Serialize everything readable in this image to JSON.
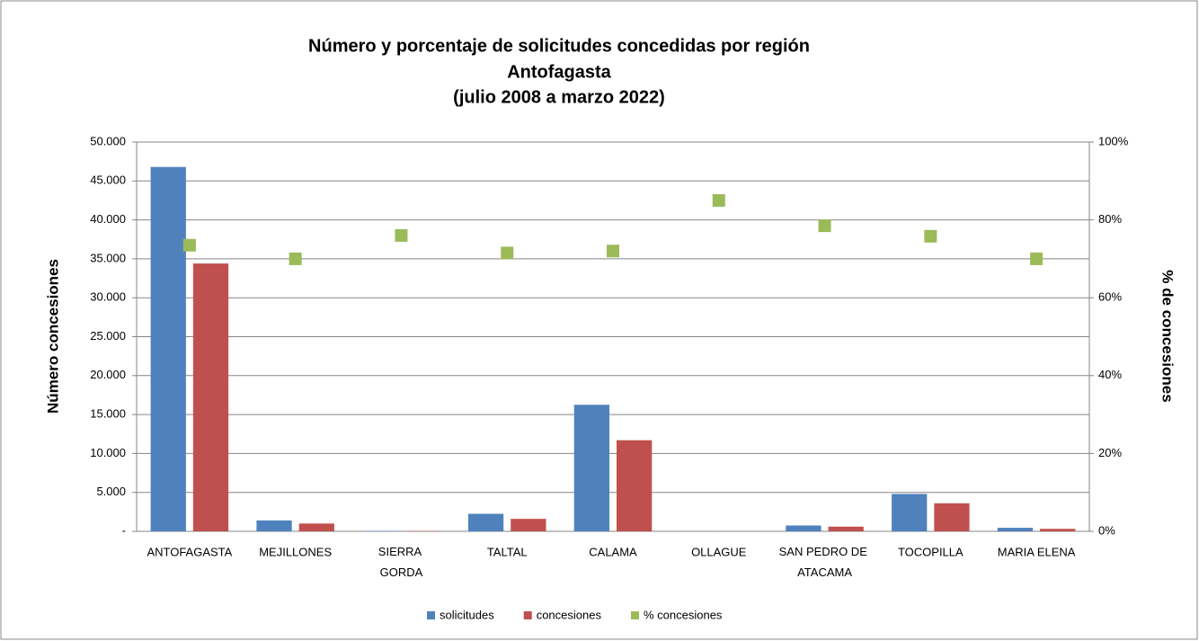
{
  "chart_data": {
    "type": "bar",
    "title": [
      "Número y porcentaje de solicitudes concedidas por región",
      "Antofagasta",
      "(julio 2008 a marzo 2022)"
    ],
    "ylabel": "Número concesiones",
    "y2label": "% de concesiones",
    "categories": [
      "ANTOFAGASTA",
      "MEJILLONES",
      "SIERRA\nGORDA",
      "TALTAL",
      "CALAMA",
      "OLLAGUE",
      "SAN PEDRO DE\nATACAMA",
      "TOCOPILLA",
      "MARIA ELENA"
    ],
    "series": [
      {
        "name": "solicitudes",
        "color": "#4f81bd",
        "type": "bar",
        "values": [
          46800,
          1400,
          50,
          2250,
          16250,
          10,
          750,
          4800,
          450
        ]
      },
      {
        "name": "concesiones",
        "color": "#c0504d",
        "type": "bar",
        "values": [
          34400,
          1000,
          40,
          1600,
          11700,
          8,
          600,
          3600,
          320
        ]
      },
      {
        "name": "% concesiones",
        "color": "#9bbb59",
        "type": "scatter",
        "axis": "y2",
        "values": [
          73.5,
          70,
          76,
          71.5,
          72,
          85,
          78.5,
          75.8,
          70
        ]
      }
    ],
    "ylim": [
      0,
      50000
    ],
    "yticks": [
      {
        "value": 0,
        "label": "-"
      },
      {
        "value": 5000,
        "label": "5.000"
      },
      {
        "value": 10000,
        "label": "10.000"
      },
      {
        "value": 15000,
        "label": "15.000"
      },
      {
        "value": 20000,
        "label": "20.000"
      },
      {
        "value": 25000,
        "label": "25.000"
      },
      {
        "value": 30000,
        "label": "30.000"
      },
      {
        "value": 35000,
        "label": "35.000"
      },
      {
        "value": 40000,
        "label": "40.000"
      },
      {
        "value": 45000,
        "label": "45.000"
      },
      {
        "value": 50000,
        "label": "50.000"
      }
    ],
    "y2lim": [
      0,
      100
    ],
    "y2ticks": [
      {
        "value": 0,
        "label": "0%"
      },
      {
        "value": 20,
        "label": "20%"
      },
      {
        "value": 40,
        "label": "40%"
      },
      {
        "value": 60,
        "label": "60%"
      },
      {
        "value": 80,
        "label": "80%"
      },
      {
        "value": 100,
        "label": "100%"
      }
    ],
    "grid": true,
    "legend": "bottom"
  }
}
